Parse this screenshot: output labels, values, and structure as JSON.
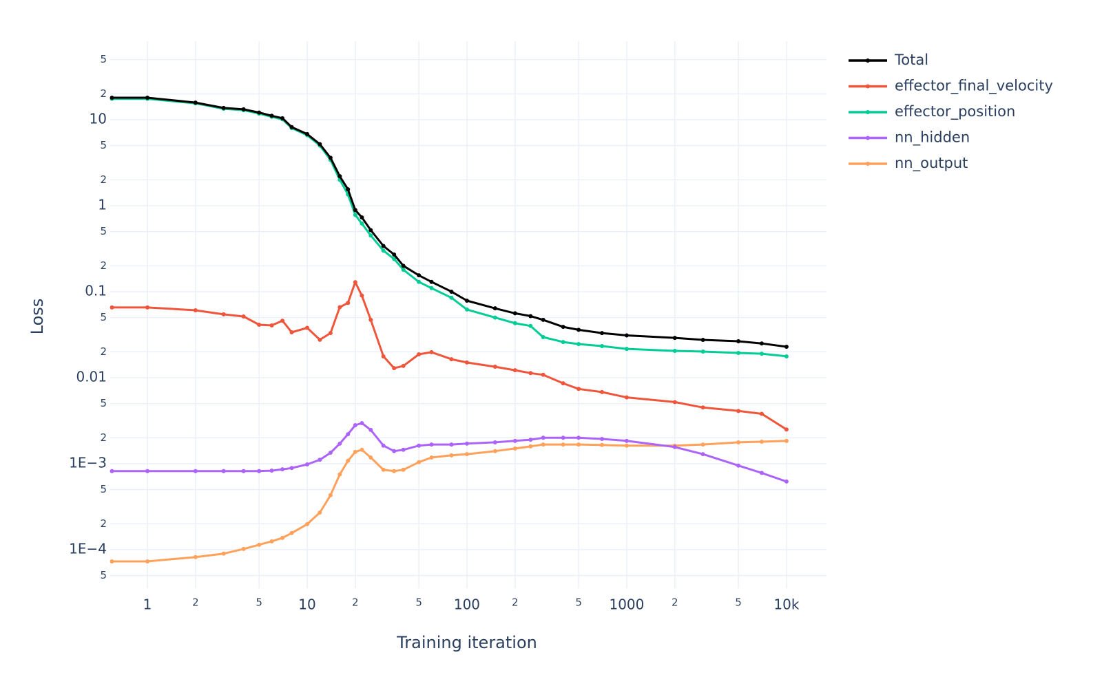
{
  "chart_data": {
    "type": "line",
    "x_label": "Training iteration",
    "y_label": "Loss",
    "log_x": true,
    "log_y": true,
    "grid": true,
    "legend": "right",
    "xlim": [
      0.585,
      17800
    ],
    "ylim": [
      3.56e-05,
      81.6
    ],
    "xticks": [
      1,
      2,
      5,
      10,
      {
        "value": 20,
        "label": "2"
      },
      {
        "value": 50,
        "label": "5"
      },
      100,
      {
        "value": 200,
        "label": "2"
      },
      {
        "value": 500,
        "label": "5"
      },
      1000,
      {
        "value": 2000,
        "label": "2"
      },
      {
        "value": 5000,
        "label": "5"
      },
      {
        "value": 10000,
        "label": "10k"
      }
    ],
    "yticks": [
      {
        "value": 5e-05,
        "label": "5"
      },
      {
        "value": 0.0001,
        "label": "1E−4"
      },
      {
        "value": 0.0002,
        "label": "2"
      },
      {
        "value": 0.0005,
        "label": "5"
      },
      {
        "value": 0.001,
        "label": "1E−3"
      },
      {
        "value": 0.002,
        "label": "2"
      },
      {
        "value": 0.005,
        "label": "5"
      },
      0.01,
      {
        "value": 0.02,
        "label": "2"
      },
      {
        "value": 0.05,
        "label": "5"
      },
      0.1,
      {
        "value": 0.2,
        "label": "2"
      },
      {
        "value": 0.5,
        "label": "5"
      },
      1,
      2,
      5,
      10,
      {
        "value": 20,
        "label": "2"
      },
      {
        "value": 50,
        "label": "5"
      }
    ],
    "x": [
      0.6,
      1,
      2,
      3,
      4,
      5,
      6,
      7,
      8,
      10,
      12,
      14,
      16,
      18,
      20,
      22,
      25,
      30,
      35,
      40,
      50,
      60,
      80,
      100,
      150,
      200,
      250,
      300,
      400,
      500,
      700,
      1000,
      2000,
      3000,
      5000,
      7000,
      10000
    ],
    "series": [
      {
        "name": "Total",
        "color": "#000000",
        "values": [
          18,
          18,
          15.8,
          13.7,
          13.2,
          12.1,
          11.1,
          10.4,
          8.2,
          6.8,
          5.2,
          3.6,
          2.2,
          1.55,
          0.89,
          0.73,
          0.52,
          0.34,
          0.27,
          0.2,
          0.155,
          0.13,
          0.1,
          0.0786,
          0.064,
          0.056,
          0.052,
          0.047,
          0.039,
          0.036,
          0.033,
          0.031,
          0.029,
          0.0275,
          0.0265,
          0.025,
          0.0229
        ]
      },
      {
        "name": "effector_final_velocity",
        "color": "#ef553b",
        "values": [
          0.0655,
          0.0655,
          0.0608,
          0.0545,
          0.0515,
          0.0413,
          0.0405,
          0.046,
          0.0337,
          0.038,
          0.0276,
          0.033,
          0.066,
          0.074,
          0.129,
          0.09,
          0.047,
          0.0177,
          0.0129,
          0.0137,
          0.0187,
          0.0198,
          0.0164,
          0.015,
          0.0134,
          0.0122,
          0.0113,
          0.0108,
          0.0086,
          0.0074,
          0.0068,
          0.0059,
          0.0052,
          0.0045,
          0.0041,
          0.0038,
          0.0025
        ]
      },
      {
        "name": "effector_position",
        "color": "#00cc96",
        "values": [
          17.5,
          17.5,
          15.5,
          13.4,
          12.9,
          11.8,
          10.8,
          10.1,
          8.0,
          6.6,
          5.0,
          3.4,
          2.0,
          1.35,
          0.78,
          0.62,
          0.45,
          0.3,
          0.24,
          0.18,
          0.13,
          0.11,
          0.085,
          0.062,
          0.05,
          0.043,
          0.04,
          0.0296,
          0.026,
          0.0246,
          0.0233,
          0.0216,
          0.0205,
          0.0201,
          0.0194,
          0.019,
          0.0177
        ]
      },
      {
        "name": "nn_hidden",
        "color": "#ab63fa",
        "values": [
          0.00082,
          0.00082,
          0.00082,
          0.00082,
          0.00082,
          0.00082,
          0.00083,
          0.00086,
          0.00089,
          0.00098,
          0.00111,
          0.00134,
          0.00171,
          0.0022,
          0.0028,
          0.00296,
          0.00247,
          0.00162,
          0.0014,
          0.00145,
          0.00162,
          0.00167,
          0.00167,
          0.00171,
          0.00177,
          0.00184,
          0.0019,
          0.002,
          0.002,
          0.002,
          0.00194,
          0.00184,
          0.00156,
          0.00129,
          0.00095,
          0.00078,
          0.00062
        ]
      },
      {
        "name": "nn_output",
        "color": "#ffa15a",
        "values": [
          7.3e-05,
          7.3e-05,
          8.2e-05,
          9e-05,
          0.000102,
          0.000114,
          0.000125,
          0.000137,
          0.000156,
          0.000198,
          0.00027,
          0.00043,
          0.00075,
          0.00108,
          0.00137,
          0.00145,
          0.00118,
          0.00085,
          0.00082,
          0.00085,
          0.00104,
          0.00118,
          0.00125,
          0.00129,
          0.0014,
          0.0015,
          0.00159,
          0.00167,
          0.00167,
          0.00167,
          0.00165,
          0.00162,
          0.00162,
          0.00167,
          0.00177,
          0.0018,
          0.00184
        ]
      }
    ]
  }
}
